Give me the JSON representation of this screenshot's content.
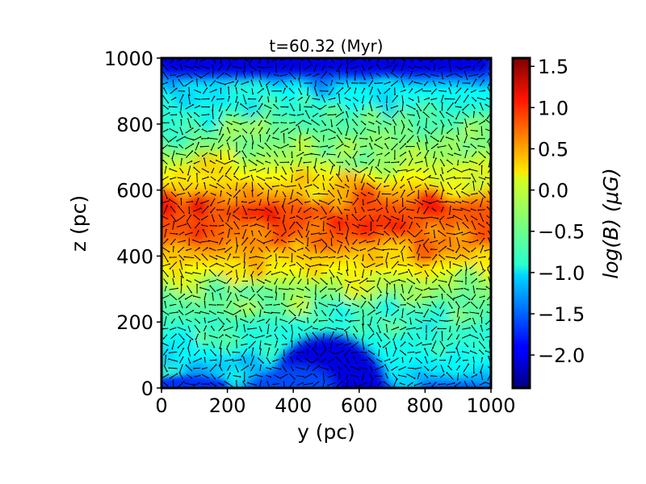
{
  "chart_data": {
    "type": "heatmap",
    "title": "t=60.32 (Myr)",
    "xlabel": "y (pc)",
    "ylabel": "z (pc)",
    "xlim": [
      0,
      1000
    ],
    "ylim": [
      0,
      1000
    ],
    "x_ticks": [
      0,
      200,
      400,
      600,
      800,
      1000
    ],
    "x_tick_labels": [
      "0",
      "200",
      "400",
      "600",
      "800",
      "1000"
    ],
    "y_ticks": [
      0,
      200,
      400,
      600,
      800,
      1000
    ],
    "y_tick_labels": [
      "0",
      "200",
      "400",
      "600",
      "800",
      "1000"
    ],
    "colorbar": {
      "label": "log(B) (μG)",
      "colormap": "jet",
      "range": [
        -2.4,
        1.6
      ],
      "ticks": [
        1.5,
        1.0,
        0.5,
        0.0,
        -0.5,
        -1.0,
        -1.5,
        -2.0
      ],
      "tick_labels": [
        "1.5",
        "1.0",
        "0.5",
        "0.0",
        "−0.5",
        "−1.0",
        "−1.5",
        "−2.0"
      ]
    },
    "field_profile_vs_z": [
      {
        "z": 0,
        "logB": -1.6
      },
      {
        "z": 50,
        "logB": -1.0
      },
      {
        "z": 100,
        "logB": -0.9
      },
      {
        "z": 200,
        "logB": -0.7
      },
      {
        "z": 300,
        "logB": -0.35
      },
      {
        "z": 400,
        "logB": 0.35
      },
      {
        "z": 450,
        "logB": 0.7
      },
      {
        "z": 500,
        "logB": 0.8
      },
      {
        "z": 550,
        "logB": 0.75
      },
      {
        "z": 600,
        "logB": 0.35
      },
      {
        "z": 700,
        "logB": -0.25
      },
      {
        "z": 800,
        "logB": -0.6
      },
      {
        "z": 900,
        "logB": -0.9
      },
      {
        "z": 960,
        "logB": -1.5
      },
      {
        "z": 1000,
        "logB": -2.0
      }
    ],
    "low_field_regions": [
      {
        "description": "bottom cavity",
        "y_range": [
          330,
          680
        ],
        "z_range": [
          0,
          170
        ],
        "logB": -2.0
      },
      {
        "description": "top band",
        "y_range": [
          0,
          1000
        ],
        "z_range": [
          950,
          1000
        ],
        "logB": -2.0
      }
    ],
    "overlay": "magnetic field direction vectors (black arrows)"
  },
  "colors": {
    "frame": "#000000",
    "background": "#ffffff"
  }
}
